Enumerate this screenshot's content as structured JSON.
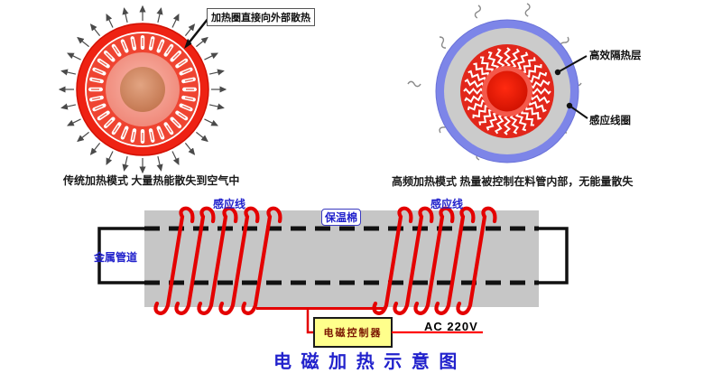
{
  "diagram_left": {
    "callout": "加热圈直接向外部散热",
    "caption": "传统加热模式 大量热能散失到空气中"
  },
  "diagram_right": {
    "label_insulation_layer": "高效隔热层",
    "label_induction_coil": "感应线圈",
    "caption": "高频加热模式 热量被控制在料管内部，无能量散失"
  },
  "schematic": {
    "label_induction_wire_left": "感应线",
    "label_induction_wire_right": "感应线",
    "label_insulation_cotton": "保温棉",
    "label_metal_pipe": "金属管道",
    "controller_label": "电磁控制器",
    "power_label": "AC 220V"
  },
  "title": "电 磁 加 热 示 意 图",
  "colors": {
    "coil_red": "#e40000",
    "heat_red": "#ee2213",
    "slot_ring_red": "#ef4431",
    "induction_blue": "#7d85e8",
    "insulation_gray": "#c6c6c6",
    "label_blue": "#2222cc",
    "controller_yellow": "#ffff8c",
    "power_line_red": "#ff0000"
  }
}
